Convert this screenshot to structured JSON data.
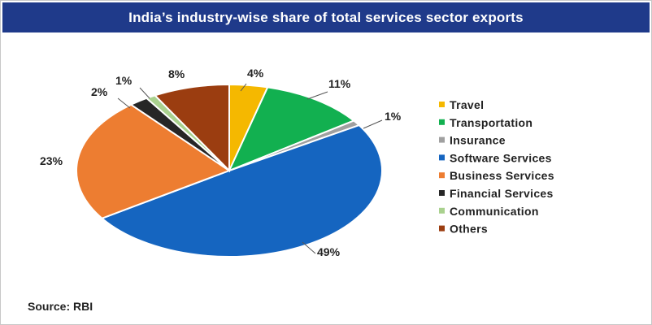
{
  "chart_data": {
    "type": "pie",
    "title": "India’s industry-wise share of total services sector exports",
    "categories": [
      "Travel",
      "Transportation",
      "Insurance",
      "Software Services",
      "Business Services",
      "Financial Services",
      "Communication",
      "Others"
    ],
    "values": [
      4,
      11,
      1,
      49,
      23,
      2,
      1,
      8
    ],
    "labels": [
      "4%",
      "11%",
      "1%",
      "49%",
      "23%",
      "2%",
      "1%",
      "8%"
    ],
    "colors": [
      "#f5b800",
      "#12b050",
      "#a0a0a0",
      "#1565c0",
      "#ed7d31",
      "#262626",
      "#a9d18e",
      "#9b3d10"
    ],
    "legend_position": "right",
    "start": "top, clockwise"
  },
  "source": "Source: RBI"
}
